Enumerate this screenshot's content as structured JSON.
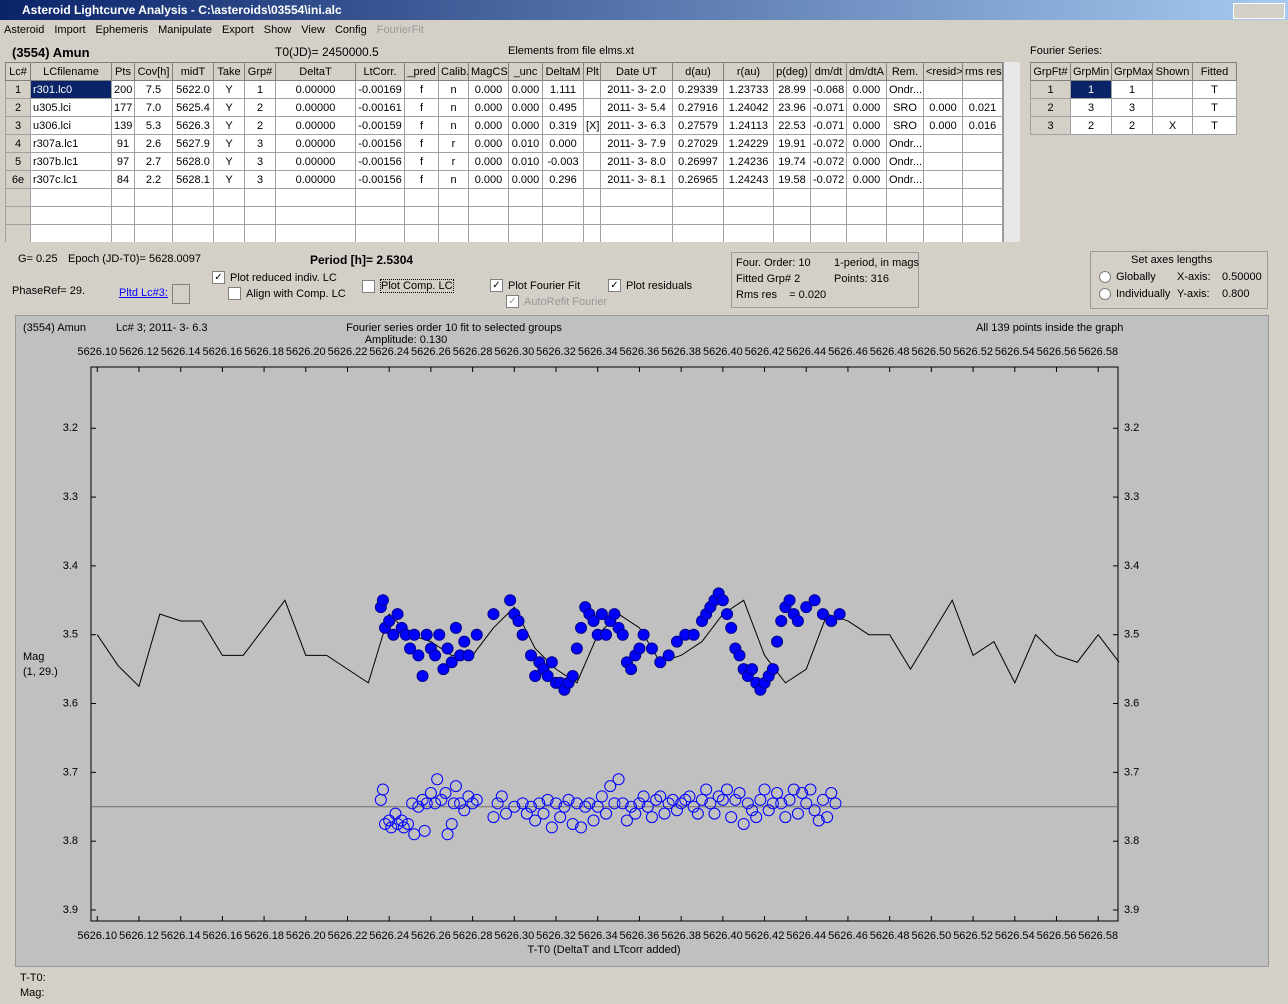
{
  "window": {
    "title": "Asteroid Lightcurve Analysis - C:\\asteroids\\03554\\ini.alc",
    "menu": [
      "Asteroid",
      "Import",
      "Ephemeris",
      "Manipulate",
      "Export",
      "Show",
      "View",
      "Config",
      "FourierFit"
    ],
    "menu_disabled": [
      8
    ]
  },
  "header": {
    "asteroid": "(3554) Amun",
    "t0": "T0(JD)= 2450000.5",
    "elements": "Elements from file elms.xt",
    "fourier_title": "Fourier Series:"
  },
  "table": {
    "headers": [
      "Lc#",
      "LCfilename",
      "Pts",
      "Cov[h]",
      "midT",
      "Take",
      "Grp#",
      "DeltaT",
      "LtCorr.",
      "_pred",
      "Calib.",
      "MagCS",
      "_unc",
      "DeltaM",
      "Plt",
      "Date UT",
      "d(au)",
      "r(au)",
      "p(deg)",
      "dm/dt",
      "dm/dtA",
      "Rem.",
      "<resid>",
      "rms res"
    ],
    "rows": [
      [
        "1",
        "r301.lc0",
        "200",
        "7.5",
        "5622.0",
        "Y",
        "1",
        "0.00000",
        "-0.00169",
        "f",
        "n",
        "0.000",
        "0.000",
        "1.111",
        null,
        "2011- 3- 2.0",
        "0.29339",
        "1.23733",
        "28.99",
        "-0.068",
        "0.000",
        "Ondr...",
        null,
        null
      ],
      [
        "2",
        "u305.lci",
        "177",
        "7.0",
        "5625.4",
        "Y",
        "2",
        "0.00000",
        "-0.00161",
        "f",
        "n",
        "0.000",
        "0.000",
        "0.495",
        null,
        "2011- 3- 5.4",
        "0.27916",
        "1.24042",
        "23.96",
        "-0.071",
        "0.000",
        "SRO",
        "0.000",
        "0.021"
      ],
      [
        "3",
        "u306.lci",
        "139",
        "5.3",
        "5626.3",
        "Y",
        "2",
        "0.00000",
        "-0.00159",
        "f",
        "n",
        "0.000",
        "0.000",
        "0.319",
        "[X]",
        "2011- 3- 6.3",
        "0.27579",
        "1.24113",
        "22.53",
        "-0.071",
        "0.000",
        "SRO",
        "0.000",
        "0.016"
      ],
      [
        "4",
        "r307a.lc1",
        "91",
        "2.6",
        "5627.9",
        "Y",
        "3",
        "0.00000",
        "-0.00156",
        "f",
        "r",
        "0.000",
        "0.010",
        "0.000",
        null,
        "2011- 3- 7.9",
        "0.27029",
        "1.24229",
        "19.91",
        "-0.072",
        "0.000",
        "Ondr...",
        null,
        null
      ],
      [
        "5",
        "r307b.lc1",
        "97",
        "2.7",
        "5628.0",
        "Y",
        "3",
        "0.00000",
        "-0.00156",
        "f",
        "r",
        "0.000",
        "0.010",
        "-0.003",
        null,
        "2011- 3- 8.0",
        "0.26997",
        "1.24236",
        "19.74",
        "-0.072",
        "0.000",
        "Ondr...",
        null,
        null
      ],
      [
        "6e",
        "r307c.lc1",
        "84",
        "2.2",
        "5628.1",
        "Y",
        "3",
        "0.00000",
        "-0.00156",
        "f",
        "n",
        "0.000",
        "0.000",
        "0.296",
        null,
        "2011- 3- 8.1",
        "0.26965",
        "1.24243",
        "19.58",
        "-0.072",
        "0.000",
        "Ondr...",
        null,
        null
      ]
    ]
  },
  "fourier_table": {
    "headers": [
      "GrpFt#",
      "GrpMin",
      "GrpMax",
      "Shown",
      "Fitted"
    ],
    "rows": [
      [
        "1",
        "1",
        "1",
        null,
        "T"
      ],
      [
        "2",
        "3",
        "3",
        null,
        "T"
      ],
      [
        "3",
        "2",
        "2",
        "X",
        "T"
      ]
    ]
  },
  "controls": {
    "g": "G= 0.25",
    "epoch": "Epoch (JD-T0)= 5628.0097",
    "period": "Period [h]= 2.5304",
    "phaseref": "PhaseRef= 29.",
    "pltd": "Pltd Lc#3:",
    "checkboxes": [
      {
        "label": "Plot reduced indiv. LC",
        "checked": true
      },
      {
        "label": "Align with Comp. LC",
        "checked": false
      },
      {
        "label": "Plot Comp. LC",
        "checked": false
      },
      {
        "label": "Plot Fourier Fit",
        "checked": true
      },
      {
        "label": "Plot residuals",
        "checked": true
      },
      {
        "label": "AutoRefit Fourier",
        "checked": true,
        "disabled": true
      }
    ],
    "info": [
      "Four. Order: 10",
      "1-period, in mags",
      "Fitted Grp# 2",
      "Points: 316",
      "Rms res    = 0.020"
    ],
    "axes_title": "Set axes lengths",
    "radios": [
      {
        "label": "Globally",
        "selected": false
      },
      {
        "label": "Individually",
        "selected": false
      }
    ],
    "x_axis_label": "X-axis:",
    "x_axis_value": "0.50000",
    "y_axis_label": "Y-axis:",
    "y_axis_value": "0.800"
  },
  "status": {
    "tt0": "T-T0:",
    "mag": "Mag:"
  },
  "chart_data": {
    "type": "scatter",
    "title": "Fourier series order 10 fit to selected groups",
    "subtitle": "Amplitude: 0.130",
    "object": "(3554) Amun",
    "lc": "Lc# 3; 2011- 3- 6.3",
    "note": "All 139 points inside the graph",
    "y_label": "Mag",
    "y_label2": "(1, 29.)",
    "x_label": "T-T0 (DeltaT and LTcorr added)",
    "xlim": [
      5626.097,
      5626.5895
    ],
    "ylim": [
      3.111,
      3.916
    ],
    "y_inverted": true,
    "xticks": [
      {
        "value": 5626.1,
        "label": "5626.10"
      },
      {
        "value": 5626.12,
        "label": "5626.12"
      },
      {
        "value": 5626.14,
        "label": "5626.14"
      },
      {
        "value": 5626.16,
        "label": "5626.16"
      },
      {
        "value": 5626.18,
        "label": "5626.18"
      },
      {
        "value": 5626.2,
        "label": "5626.20"
      },
      {
        "value": 5626.22,
        "label": "5626.22"
      },
      {
        "value": 5626.24,
        "label": "5626.24"
      },
      {
        "value": 5626.26,
        "label": "5626.26"
      },
      {
        "value": 5626.28,
        "label": "5626.28"
      },
      {
        "value": 5626.3,
        "label": "5626.30"
      },
      {
        "value": 5626.32,
        "label": "5626.32"
      },
      {
        "value": 5626.34,
        "label": "5626.34"
      },
      {
        "value": 5626.36,
        "label": "5626.36"
      },
      {
        "value": 5626.38,
        "label": "5626.38"
      },
      {
        "value": 5626.4,
        "label": "5626.40"
      },
      {
        "value": 5626.42,
        "label": "5626.42"
      },
      {
        "value": 5626.44,
        "label": "5626.44"
      },
      {
        "value": 5626.46,
        "label": "5626.46"
      },
      {
        "value": 5626.48,
        "label": "5626.48"
      },
      {
        "value": 5626.5,
        "label": "5626.50"
      },
      {
        "value": 5626.52,
        "label": "5626.52"
      },
      {
        "value": 5626.54,
        "label": "5626.54"
      },
      {
        "value": 5626.56,
        "label": "5626.56"
      },
      {
        "value": 5626.58,
        "label": "5626.58"
      }
    ],
    "yticks": [
      3.2,
      3.3,
      3.4,
      3.5,
      3.6,
      3.7,
      3.8,
      3.9
    ],
    "reference_line": 3.75,
    "series": [
      {
        "style": "line",
        "color": "#000000",
        "x": [
          5626.1,
          5626.11,
          5626.12,
          5626.13,
          5626.14,
          5626.15,
          5626.16,
          5626.17,
          5626.18,
          5626.19,
          5626.2,
          5626.21,
          5626.22,
          5626.23,
          5626.24,
          5626.25,
          5626.26,
          5626.27,
          5626.28,
          5626.29,
          5626.3,
          5626.31,
          5626.32,
          5626.33,
          5626.34,
          5626.35,
          5626.36,
          5626.37,
          5626.38,
          5626.39,
          5626.4,
          5626.41,
          5626.42,
          5626.43,
          5626.44,
          5626.45,
          5626.46,
          5626.47,
          5626.48,
          5626.49,
          5626.5,
          5626.51,
          5626.52,
          5626.53,
          5626.54,
          5626.55,
          5626.56,
          5626.57,
          5626.58,
          5626.59
        ],
        "values": [
          3.5,
          3.545,
          3.575,
          3.47,
          3.48,
          3.48,
          3.53,
          3.53,
          3.49,
          3.45,
          3.53,
          3.53,
          3.55,
          3.57,
          3.47,
          3.5,
          3.51,
          3.53,
          3.53,
          3.49,
          3.46,
          3.52,
          3.55,
          3.57,
          3.5,
          3.47,
          3.49,
          3.54,
          3.53,
          3.51,
          3.47,
          3.45,
          3.53,
          3.57,
          3.55,
          3.47,
          3.48,
          3.5,
          3.5,
          3.55,
          3.5,
          3.45,
          3.53,
          3.51,
          3.57,
          3.5,
          3.53,
          3.54,
          3.5,
          3.54
        ]
      },
      {
        "style": "filled",
        "color": "#0000ff",
        "x": [
          5626.236,
          5626.237,
          5626.238,
          5626.24,
          5626.242,
          5626.244,
          5626.246,
          5626.248,
          5626.25,
          5626.252,
          5626.254,
          5626.256,
          5626.258,
          5626.26,
          5626.262,
          5626.264,
          5626.266,
          5626.268,
          5626.27,
          5626.272,
          5626.274,
          5626.276,
          5626.278,
          5626.282,
          5626.29,
          5626.298,
          5626.3,
          5626.302,
          5626.304,
          5626.308,
          5626.31,
          5626.312,
          5626.314,
          5626.316,
          5626.318,
          5626.32,
          5626.322,
          5626.324,
          5626.326,
          5626.328,
          5626.33,
          5626.332,
          5626.334,
          5626.336,
          5626.338,
          5626.34,
          5626.342,
          5626.344,
          5626.346,
          5626.348,
          5626.35,
          5626.352,
          5626.354,
          5626.356,
          5626.358,
          5626.36,
          5626.362,
          5626.366,
          5626.37,
          5626.374,
          5626.378,
          5626.382,
          5626.386,
          5626.39,
          5626.392,
          5626.394,
          5626.396,
          5626.398,
          5626.4,
          5626.402,
          5626.404,
          5626.406,
          5626.408,
          5626.41,
          5626.412,
          5626.414,
          5626.416,
          5626.418,
          5626.42,
          5626.422,
          5626.424,
          5626.426,
          5626.428,
          5626.43,
          5626.432,
          5626.434,
          5626.436,
          5626.44,
          5626.444,
          5626.448,
          5626.452,
          5626.456
        ],
        "values": [
          3.46,
          3.45,
          3.49,
          3.48,
          3.5,
          3.47,
          3.49,
          3.5,
          3.52,
          3.5,
          3.53,
          3.56,
          3.5,
          3.52,
          3.53,
          3.5,
          3.55,
          3.52,
          3.54,
          3.49,
          3.53,
          3.51,
          3.53,
          3.5,
          3.47,
          3.45,
          3.47,
          3.48,
          3.5,
          3.53,
          3.56,
          3.54,
          3.55,
          3.56,
          3.54,
          3.57,
          3.57,
          3.58,
          3.57,
          3.56,
          3.52,
          3.49,
          3.46,
          3.47,
          3.48,
          3.5,
          3.47,
          3.5,
          3.48,
          3.47,
          3.49,
          3.5,
          3.54,
          3.55,
          3.53,
          3.52,
          3.5,
          3.52,
          3.54,
          3.53,
          3.51,
          3.5,
          3.5,
          3.48,
          3.47,
          3.46,
          3.45,
          3.44,
          3.45,
          3.47,
          3.49,
          3.52,
          3.53,
          3.55,
          3.56,
          3.55,
          3.57,
          3.58,
          3.57,
          3.56,
          3.55,
          3.51,
          3.48,
          3.46,
          3.45,
          3.47,
          3.48,
          3.46,
          3.45,
          3.47,
          3.48,
          3.47
        ]
      },
      {
        "style": "open",
        "color": "#0000ff",
        "x": [
          5626.236,
          5626.237,
          5626.238,
          5626.24,
          5626.241,
          5626.243,
          5626.244,
          5626.246,
          5626.247,
          5626.249,
          5626.251,
          5626.252,
          5626.254,
          5626.256,
          5626.257,
          5626.258,
          5626.26,
          5626.262,
          5626.263,
          5626.265,
          5626.267,
          5626.268,
          5626.27,
          5626.271,
          5626.272,
          5626.274,
          5626.276,
          5626.278,
          5626.28,
          5626.282,
          5626.29,
          5626.292,
          5626.294,
          5626.296,
          5626.3,
          5626.304,
          5626.306,
          5626.308,
          5626.31,
          5626.312,
          5626.314,
          5626.316,
          5626.318,
          5626.32,
          5626.322,
          5626.324,
          5626.326,
          5626.328,
          5626.33,
          5626.332,
          5626.334,
          5626.336,
          5626.338,
          5626.34,
          5626.342,
          5626.344,
          5626.346,
          5626.348,
          5626.35,
          5626.352,
          5626.354,
          5626.356,
          5626.358,
          5626.36,
          5626.362,
          5626.364,
          5626.366,
          5626.368,
          5626.37,
          5626.372,
          5626.374,
          5626.376,
          5626.378,
          5626.38,
          5626.382,
          5626.384,
          5626.386,
          5626.388,
          5626.39,
          5626.392,
          5626.394,
          5626.396,
          5626.398,
          5626.4,
          5626.402,
          5626.404,
          5626.406,
          5626.408,
          5626.41,
          5626.412,
          5626.414,
          5626.416,
          5626.418,
          5626.42,
          5626.422,
          5626.424,
          5626.426,
          5626.428,
          5626.43,
          5626.432,
          5626.434,
          5626.436,
          5626.438,
          5626.44,
          5626.442,
          5626.444,
          5626.446,
          5626.448,
          5626.45,
          5626.452,
          5626.454
        ],
        "values": [
          3.74,
          3.725,
          3.775,
          3.77,
          3.78,
          3.76,
          3.775,
          3.77,
          3.78,
          3.775,
          3.745,
          3.79,
          3.75,
          3.74,
          3.785,
          3.745,
          3.73,
          3.745,
          3.71,
          3.74,
          3.73,
          3.79,
          3.775,
          3.745,
          3.72,
          3.745,
          3.755,
          3.735,
          3.745,
          3.74,
          3.765,
          3.745,
          3.735,
          3.76,
          3.75,
          3.745,
          3.76,
          3.75,
          3.77,
          3.745,
          3.76,
          3.74,
          3.78,
          3.745,
          3.765,
          3.75,
          3.74,
          3.775,
          3.745,
          3.78,
          3.75,
          3.745,
          3.77,
          3.75,
          3.735,
          3.76,
          3.72,
          3.745,
          3.71,
          3.745,
          3.77,
          3.75,
          3.76,
          3.745,
          3.735,
          3.75,
          3.765,
          3.74,
          3.735,
          3.76,
          3.745,
          3.74,
          3.755,
          3.745,
          3.74,
          3.735,
          3.75,
          3.76,
          3.74,
          3.725,
          3.745,
          3.76,
          3.735,
          3.74,
          3.725,
          3.765,
          3.74,
          3.73,
          3.775,
          3.745,
          3.755,
          3.765,
          3.74,
          3.725,
          3.755,
          3.745,
          3.73,
          3.745,
          3.765,
          3.74,
          3.725,
          3.76,
          3.73,
          3.745,
          3.725,
          3.755,
          3.77,
          3.74,
          3.765,
          3.73,
          3.745
        ]
      }
    ]
  }
}
